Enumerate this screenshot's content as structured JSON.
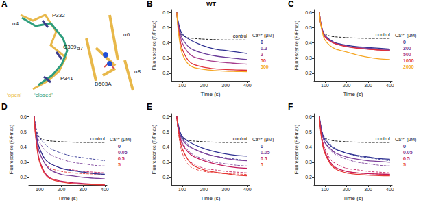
{
  "diagram": {
    "label": "A",
    "helix_labels": [
      "α4",
      "P332",
      "G339",
      "P341",
      "α6",
      "α7",
      "α8",
      "D503A"
    ],
    "states": [
      {
        "name": "‘open’",
        "color": "#e8b84a"
      },
      {
        "name": "‘closed’",
        "color": "#2f9e7e"
      }
    ]
  },
  "chart_data": [
    {
      "type": "line",
      "label": "B",
      "title": "WT",
      "x_label": "Time (s)",
      "y_label": "Fluorescence (F/Fmax)",
      "legend_title": "Ca²⁺ (μM)",
      "grid": false,
      "xlim": [
        50,
        410
      ],
      "xticks": [
        100,
        200,
        300,
        400
      ],
      "ylim": [
        0.15,
        0.62
      ],
      "yticks": [
        0.2,
        0.3,
        0.4,
        0.5,
        0.6
      ],
      "x": [
        75,
        80,
        90,
        100,
        125,
        150,
        200,
        250,
        300,
        350,
        400
      ],
      "control": {
        "name": "control",
        "color": "#000000",
        "line_style": "dashed",
        "values": [
          0.6,
          0.52,
          0.47,
          0.45,
          0.435,
          0.43,
          0.425,
          0.422,
          0.42,
          0.42,
          0.42
        ]
      },
      "series": [
        {
          "name": "0",
          "color": "#2e3192",
          "values": [
            0.6,
            0.55,
            0.49,
            0.46,
            0.43,
            0.41,
            0.38,
            0.36,
            0.35,
            0.34,
            0.33
          ]
        },
        {
          "name": "0.2",
          "color": "#6a3d9a",
          "values": [
            0.6,
            0.54,
            0.47,
            0.43,
            0.38,
            0.355,
            0.33,
            0.315,
            0.305,
            0.297,
            0.29
          ]
        },
        {
          "name": "2",
          "color": "#a63c8c",
          "values": [
            0.6,
            0.53,
            0.45,
            0.4,
            0.34,
            0.31,
            0.29,
            0.278,
            0.27,
            0.265,
            0.26
          ]
        },
        {
          "name": "50",
          "color": "#e0313a",
          "values": [
            0.6,
            0.52,
            0.42,
            0.36,
            0.29,
            0.26,
            0.24,
            0.23,
            0.225,
            0.222,
            0.22
          ]
        },
        {
          "name": "500",
          "color": "#f5a623",
          "values": [
            0.6,
            0.5,
            0.39,
            0.33,
            0.265,
            0.24,
            0.225,
            0.218,
            0.214,
            0.212,
            0.21
          ]
        }
      ]
    },
    {
      "type": "line",
      "label": "C",
      "x_label": "Time (s)",
      "y_label": "Fluorescence (F/Fmax)",
      "legend_title": "Ca²⁺ (μM)",
      "grid": false,
      "xlim": [
        50,
        410
      ],
      "xticks": [
        100,
        200,
        300,
        400
      ],
      "ylim": [
        0.15,
        0.62
      ],
      "yticks": [
        0.2,
        0.3,
        0.4,
        0.5,
        0.6
      ],
      "x": [
        75,
        80,
        90,
        100,
        125,
        150,
        200,
        250,
        300,
        350,
        400
      ],
      "control": {
        "name": "control",
        "color": "#000000",
        "line_style": "dashed",
        "values": [
          0.6,
          0.53,
          0.48,
          0.46,
          0.445,
          0.44,
          0.435,
          0.432,
          0.43,
          0.43,
          0.43
        ]
      },
      "series": [
        {
          "name": "0",
          "color": "#2e3192",
          "values": [
            0.6,
            0.54,
            0.48,
            0.45,
            0.42,
            0.4,
            0.385,
            0.375,
            0.37,
            0.365,
            0.36
          ]
        },
        {
          "name": "200",
          "color": "#6a3d9a",
          "values": [
            0.6,
            0.54,
            0.48,
            0.45,
            0.415,
            0.398,
            0.38,
            0.37,
            0.365,
            0.36,
            0.355
          ]
        },
        {
          "name": "500",
          "color": "#a63c8c",
          "values": [
            0.6,
            0.54,
            0.475,
            0.445,
            0.412,
            0.395,
            0.377,
            0.367,
            0.36,
            0.355,
            0.35
          ]
        },
        {
          "name": "1000",
          "color": "#e0313a",
          "values": [
            0.6,
            0.535,
            0.47,
            0.44,
            0.41,
            0.393,
            0.375,
            0.365,
            0.358,
            0.353,
            0.348
          ]
        },
        {
          "name": "2000",
          "color": "#f5a623",
          "values": [
            0.6,
            0.53,
            0.46,
            0.42,
            0.38,
            0.36,
            0.34,
            0.32,
            0.305,
            0.295,
            0.29
          ]
        }
      ]
    },
    {
      "type": "line",
      "label": "D",
      "x_label": "Time (s)",
      "y_label": "Fluorescence (F/Fmax)",
      "legend_title": "Ca²⁺ (μM)",
      "grid": false,
      "xlim": [
        50,
        410
      ],
      "xticks": [
        100,
        200,
        300,
        400
      ],
      "ylim": [
        0.15,
        0.62
      ],
      "yticks": [
        0.2,
        0.3,
        0.4,
        0.5,
        0.6
      ],
      "x": [
        75,
        80,
        90,
        100,
        125,
        150,
        200,
        250,
        300,
        350,
        400
      ],
      "control": {
        "name": "control",
        "color": "#000000",
        "line_style": "dashed",
        "values": [
          0.6,
          0.53,
          0.48,
          0.46,
          0.445,
          0.44,
          0.435,
          0.432,
          0.43,
          0.43,
          0.43
        ]
      },
      "series": [
        {
          "color": "#2e3192",
          "line_style": "dashed",
          "values": [
            0.6,
            0.55,
            0.49,
            0.46,
            0.42,
            0.39,
            0.36,
            0.34,
            0.33,
            0.32,
            0.31
          ]
        },
        {
          "color": "#7b3f99",
          "line_style": "dashed",
          "values": [
            0.6,
            0.54,
            0.47,
            0.43,
            0.38,
            0.35,
            0.32,
            0.3,
            0.29,
            0.28,
            0.275
          ]
        },
        {
          "color": "#c2185b",
          "line_style": "dashed",
          "values": [
            0.6,
            0.53,
            0.44,
            0.39,
            0.32,
            0.29,
            0.26,
            0.25,
            0.24,
            0.235,
            0.23
          ]
        },
        {
          "color": "#e53935",
          "line_style": "dashed",
          "values": [
            0.6,
            0.52,
            0.42,
            0.36,
            0.29,
            0.26,
            0.24,
            0.23,
            0.225,
            0.222,
            0.22
          ]
        },
        {
          "name": "0",
          "color": "#2e3192",
          "values": [
            0.6,
            0.53,
            0.44,
            0.39,
            0.32,
            0.29,
            0.26,
            0.245,
            0.235,
            0.225,
            0.22
          ]
        },
        {
          "name": "0.05",
          "color": "#7b3f99",
          "values": [
            0.6,
            0.52,
            0.42,
            0.36,
            0.29,
            0.25,
            0.22,
            0.21,
            0.2,
            0.195,
            0.19
          ]
        },
        {
          "name": "0.5",
          "color": "#c2185b",
          "values": [
            0.6,
            0.5,
            0.38,
            0.31,
            0.23,
            0.195,
            0.175,
            0.165,
            0.16,
            0.155,
            0.15
          ]
        },
        {
          "name": "5",
          "color": "#e53935",
          "values": [
            0.6,
            0.49,
            0.37,
            0.3,
            0.22,
            0.19,
            0.17,
            0.16,
            0.155,
            0.152,
            0.15
          ]
        }
      ]
    },
    {
      "type": "line",
      "label": "E",
      "x_label": "Time (s)",
      "y_label": "Fluorescence (F/Fmax)",
      "legend_title": "Ca²⁺ (μM)",
      "grid": false,
      "xlim": [
        50,
        410
      ],
      "xticks": [
        100,
        200,
        300,
        400
      ],
      "ylim": [
        0.15,
        0.62
      ],
      "yticks": [
        0.2,
        0.3,
        0.4,
        0.5,
        0.6
      ],
      "x": [
        75,
        80,
        90,
        100,
        125,
        150,
        200,
        250,
        300,
        350,
        400
      ],
      "control": {
        "name": "control",
        "color": "#000000",
        "line_style": "dashed",
        "values": [
          0.6,
          0.53,
          0.48,
          0.46,
          0.445,
          0.44,
          0.435,
          0.432,
          0.43,
          0.43,
          0.43
        ]
      },
      "series": [
        {
          "color": "#2e3192",
          "line_style": "dashed",
          "values": [
            0.6,
            0.55,
            0.49,
            0.46,
            0.42,
            0.39,
            0.36,
            0.34,
            0.33,
            0.32,
            0.31
          ]
        },
        {
          "color": "#7b3f99",
          "line_style": "dashed",
          "values": [
            0.6,
            0.54,
            0.47,
            0.43,
            0.38,
            0.35,
            0.32,
            0.3,
            0.29,
            0.28,
            0.275
          ]
        },
        {
          "color": "#c2185b",
          "line_style": "dashed",
          "values": [
            0.6,
            0.53,
            0.44,
            0.39,
            0.32,
            0.29,
            0.26,
            0.25,
            0.24,
            0.235,
            0.23
          ]
        },
        {
          "color": "#e53935",
          "line_style": "dashed",
          "values": [
            0.6,
            0.52,
            0.42,
            0.36,
            0.29,
            0.26,
            0.24,
            0.23,
            0.225,
            0.222,
            0.22
          ]
        },
        {
          "name": "0",
          "color": "#2e3192",
          "values": [
            0.6,
            0.56,
            0.5,
            0.47,
            0.44,
            0.42,
            0.39,
            0.37,
            0.355,
            0.345,
            0.34
          ]
        },
        {
          "name": "0.05",
          "color": "#7b3f99",
          "values": [
            0.6,
            0.55,
            0.48,
            0.45,
            0.41,
            0.39,
            0.36,
            0.34,
            0.325,
            0.315,
            0.31
          ]
        },
        {
          "name": "0.5",
          "color": "#c2185b",
          "values": [
            0.6,
            0.54,
            0.46,
            0.42,
            0.37,
            0.34,
            0.31,
            0.29,
            0.275,
            0.265,
            0.26
          ]
        },
        {
          "name": "5",
          "color": "#e53935",
          "values": [
            0.6,
            0.53,
            0.44,
            0.39,
            0.32,
            0.28,
            0.25,
            0.235,
            0.225,
            0.215,
            0.21
          ]
        }
      ]
    },
    {
      "type": "line",
      "label": "F",
      "x_label": "Time (s)",
      "y_label": "Fluorescence (F/Fmax)",
      "legend_title": "Ca²⁺ (μM)",
      "grid": false,
      "xlim": [
        50,
        410
      ],
      "xticks": [
        100,
        200,
        300,
        400
      ],
      "ylim": [
        0.15,
        0.62
      ],
      "yticks": [
        0.2,
        0.3,
        0.4,
        0.5,
        0.6
      ],
      "x": [
        75,
        80,
        90,
        100,
        125,
        150,
        200,
        250,
        300,
        350,
        400
      ],
      "control": {
        "name": "control",
        "color": "#000000",
        "line_style": "dashed",
        "values": [
          0.6,
          0.53,
          0.48,
          0.46,
          0.445,
          0.44,
          0.435,
          0.432,
          0.43,
          0.43,
          0.43
        ]
      },
      "series": [
        {
          "color": "#2e3192",
          "line_style": "dashed",
          "values": [
            0.6,
            0.55,
            0.49,
            0.46,
            0.42,
            0.39,
            0.36,
            0.34,
            0.33,
            0.32,
            0.31
          ]
        },
        {
          "color": "#7b3f99",
          "line_style": "dashed",
          "values": [
            0.6,
            0.54,
            0.47,
            0.43,
            0.38,
            0.35,
            0.32,
            0.3,
            0.29,
            0.28,
            0.275
          ]
        },
        {
          "color": "#c2185b",
          "line_style": "dashed",
          "values": [
            0.6,
            0.53,
            0.44,
            0.39,
            0.32,
            0.29,
            0.26,
            0.25,
            0.24,
            0.235,
            0.23
          ]
        },
        {
          "color": "#e53935",
          "line_style": "dashed",
          "values": [
            0.6,
            0.52,
            0.42,
            0.36,
            0.29,
            0.26,
            0.24,
            0.23,
            0.225,
            0.222,
            0.22
          ]
        },
        {
          "name": "0",
          "color": "#2e3192",
          "values": [
            0.6,
            0.55,
            0.48,
            0.45,
            0.41,
            0.385,
            0.36,
            0.345,
            0.335,
            0.325,
            0.32
          ]
        },
        {
          "name": "0.05",
          "color": "#7b3f99",
          "values": [
            0.6,
            0.54,
            0.47,
            0.43,
            0.39,
            0.36,
            0.335,
            0.32,
            0.31,
            0.305,
            0.3
          ]
        },
        {
          "name": "0.5",
          "color": "#c2185b",
          "values": [
            0.6,
            0.52,
            0.42,
            0.37,
            0.3,
            0.265,
            0.24,
            0.23,
            0.225,
            0.222,
            0.22
          ]
        },
        {
          "name": "5",
          "color": "#e53935",
          "values": [
            0.6,
            0.51,
            0.41,
            0.36,
            0.29,
            0.255,
            0.23,
            0.22,
            0.215,
            0.212,
            0.21
          ]
        }
      ]
    }
  ]
}
